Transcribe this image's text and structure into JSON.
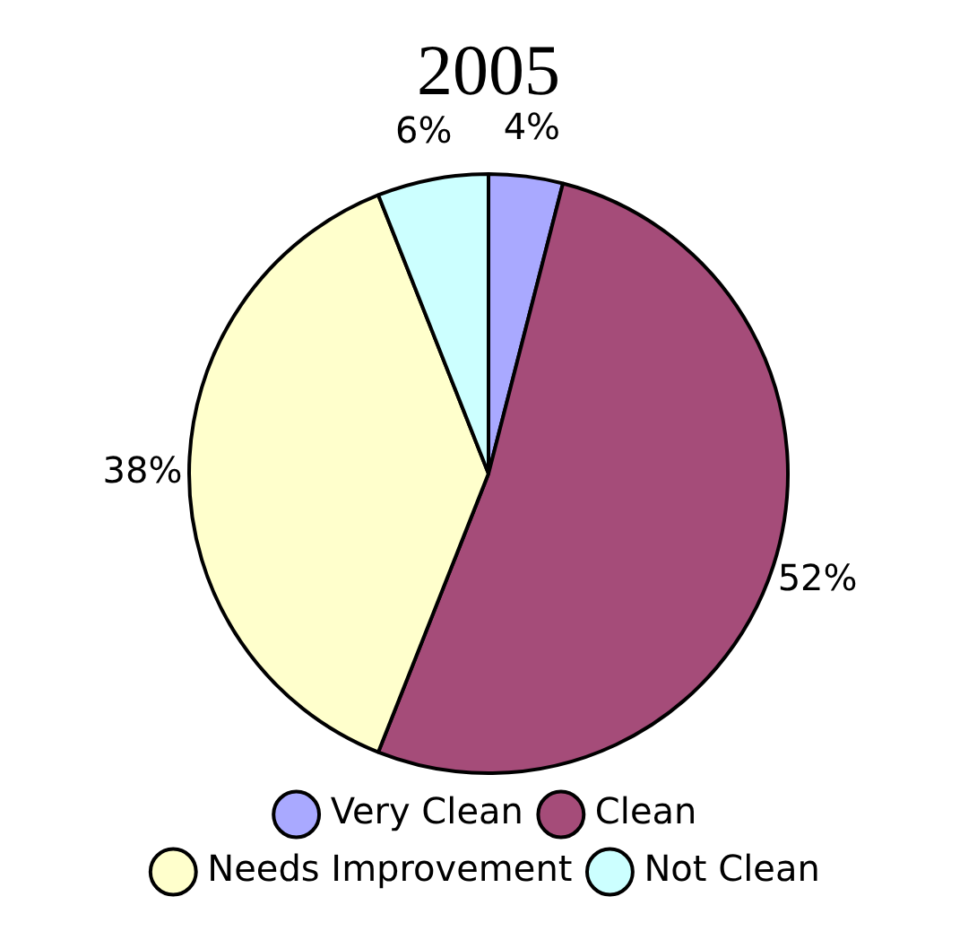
{
  "chart_data": {
    "type": "pie",
    "title": "2005",
    "categories": [
      "Very Clean",
      "Clean",
      "Needs Improvement",
      "Not Clean"
    ],
    "values": [
      4,
      52,
      38,
      6
    ],
    "colors": [
      "#a9a9ff",
      "#a54c79",
      "#ffffcc",
      "#ccffff"
    ],
    "value_labels": [
      "4%",
      "52%",
      "38%",
      "6%"
    ],
    "legend": "bottom"
  }
}
